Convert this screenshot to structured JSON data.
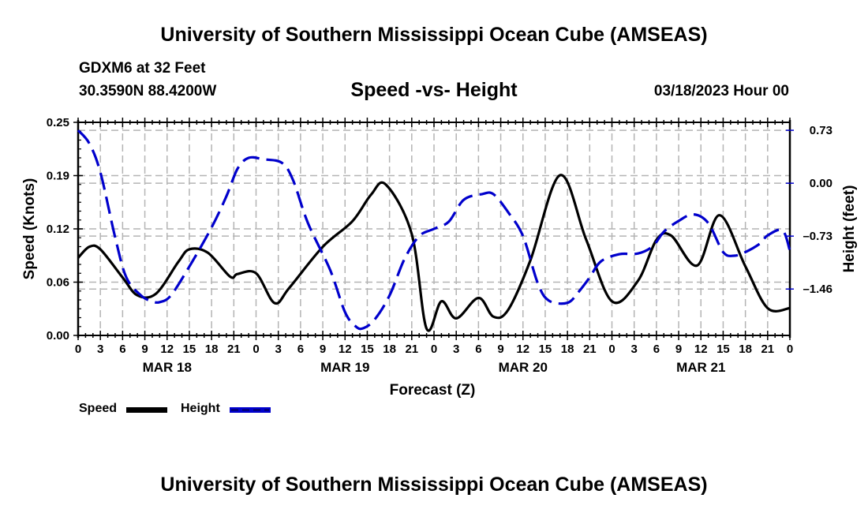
{
  "header": {
    "title": "University of Southern Mississippi Ocean Cube (AMSEAS)",
    "station": "GDXM6 at 32 Feet",
    "coordinates": "30.3590N  88.4200W",
    "subtitle": "Speed -vs- Height",
    "datetime": "03/18/2023 Hour 00"
  },
  "footer": {
    "title": "University of Southern Mississippi Ocean Cube (AMSEAS)"
  },
  "legend": {
    "items": [
      {
        "label": "Speed",
        "color": "#000000",
        "style": "solid"
      },
      {
        "label": "Height",
        "color": "#0000cc",
        "style": "dashed"
      }
    ]
  },
  "chart_data": {
    "type": "line",
    "title": "Speed -vs- Height",
    "xlabel": "Forecast (Z)",
    "ylabel": "Speed (Knots)",
    "y2label": "Height (feet)",
    "xlim": [
      0,
      96
    ],
    "ylim": [
      0.0,
      0.25
    ],
    "y2lim": [
      -2.1,
      0.84
    ],
    "grid": true,
    "legend_position": "bottom-left",
    "x_tick_labels": [
      "0",
      "3",
      "6",
      "9",
      "12",
      "15",
      "18",
      "21",
      "0",
      "3",
      "6",
      "9",
      "12",
      "15",
      "18",
      "21",
      "0",
      "3",
      "6",
      "9",
      "12",
      "15",
      "18",
      "21",
      "0",
      "3",
      "6",
      "9",
      "12",
      "15",
      "18",
      "21",
      "0"
    ],
    "day_labels": [
      {
        "label": "MAR 18",
        "hour": 12
      },
      {
        "label": "MAR 19",
        "hour": 36
      },
      {
        "label": "MAR 20",
        "hour": 60
      },
      {
        "label": "MAR 21",
        "hour": 84
      }
    ],
    "y_ticks": [
      "0.00",
      "0.06",
      "0.12",
      "0.19",
      "0.25"
    ],
    "y_tick_values": [
      0.0,
      0.0625,
      0.125,
      0.1875,
      0.25
    ],
    "y2_ticks": [
      "-1.46",
      "-0.73",
      "0.00",
      "0.73"
    ],
    "y2_tick_values": [
      -1.46,
      -0.73,
      0.0,
      0.73
    ],
    "series": [
      {
        "name": "Speed",
        "axis": "left",
        "color": "#000000",
        "x": [
          0,
          1.5,
          3,
          6,
          8,
          10.5,
          13.5,
          15,
          17.5,
          20.5,
          21.5,
          24,
          26.5,
          28.5,
          33,
          37,
          39.5,
          41.5,
          45,
          47,
          49,
          51,
          54,
          56,
          58,
          61,
          65,
          68.5,
          72,
          75.5,
          78,
          80,
          83.5,
          86.5,
          90,
          93,
          96
        ],
        "values": [
          0.091,
          0.104,
          0.101,
          0.068,
          0.047,
          0.049,
          0.086,
          0.101,
          0.097,
          0.069,
          0.072,
          0.073,
          0.038,
          0.056,
          0.104,
          0.134,
          0.165,
          0.177,
          0.119,
          0.008,
          0.04,
          0.02,
          0.044,
          0.022,
          0.03,
          0.088,
          0.188,
          0.113,
          0.04,
          0.064,
          0.112,
          0.117,
          0.082,
          0.141,
          0.081,
          0.032,
          0.032
        ]
      },
      {
        "name": "Height",
        "axis": "right",
        "color": "#0000cc",
        "x": [
          0,
          1.5,
          3,
          5,
          6.5,
          8.5,
          10,
          11,
          12.5,
          15,
          18,
          20,
          21.5,
          23,
          25,
          27.5,
          29,
          31,
          34,
          36,
          37.5,
          38.5,
          40,
          42,
          44,
          46,
          48,
          50,
          52,
          54.5,
          56,
          58,
          60,
          62,
          63.5,
          66,
          67.5,
          69,
          70.5,
          73,
          75.5,
          77.5,
          79,
          81,
          83,
          85,
          87,
          88.5,
          90,
          92,
          93,
          95,
          96
        ],
        "values": [
          0.73,
          0.55,
          0.15,
          -0.75,
          -1.3,
          -1.55,
          -1.63,
          -1.64,
          -1.55,
          -1.15,
          -0.61,
          -0.18,
          0.2,
          0.35,
          0.33,
          0.28,
          0.04,
          -0.55,
          -1.2,
          -1.78,
          -1.98,
          -2.0,
          -1.88,
          -1.55,
          -1.05,
          -0.73,
          -0.63,
          -0.53,
          -0.23,
          -0.15,
          -0.15,
          -0.4,
          -0.73,
          -1.38,
          -1.62,
          -1.65,
          -1.5,
          -1.3,
          -1.08,
          -0.98,
          -0.97,
          -0.87,
          -0.67,
          -0.52,
          -0.43,
          -0.55,
          -0.95,
          -1.0,
          -0.95,
          -0.83,
          -0.72,
          -0.65,
          -0.93
        ]
      }
    ]
  }
}
